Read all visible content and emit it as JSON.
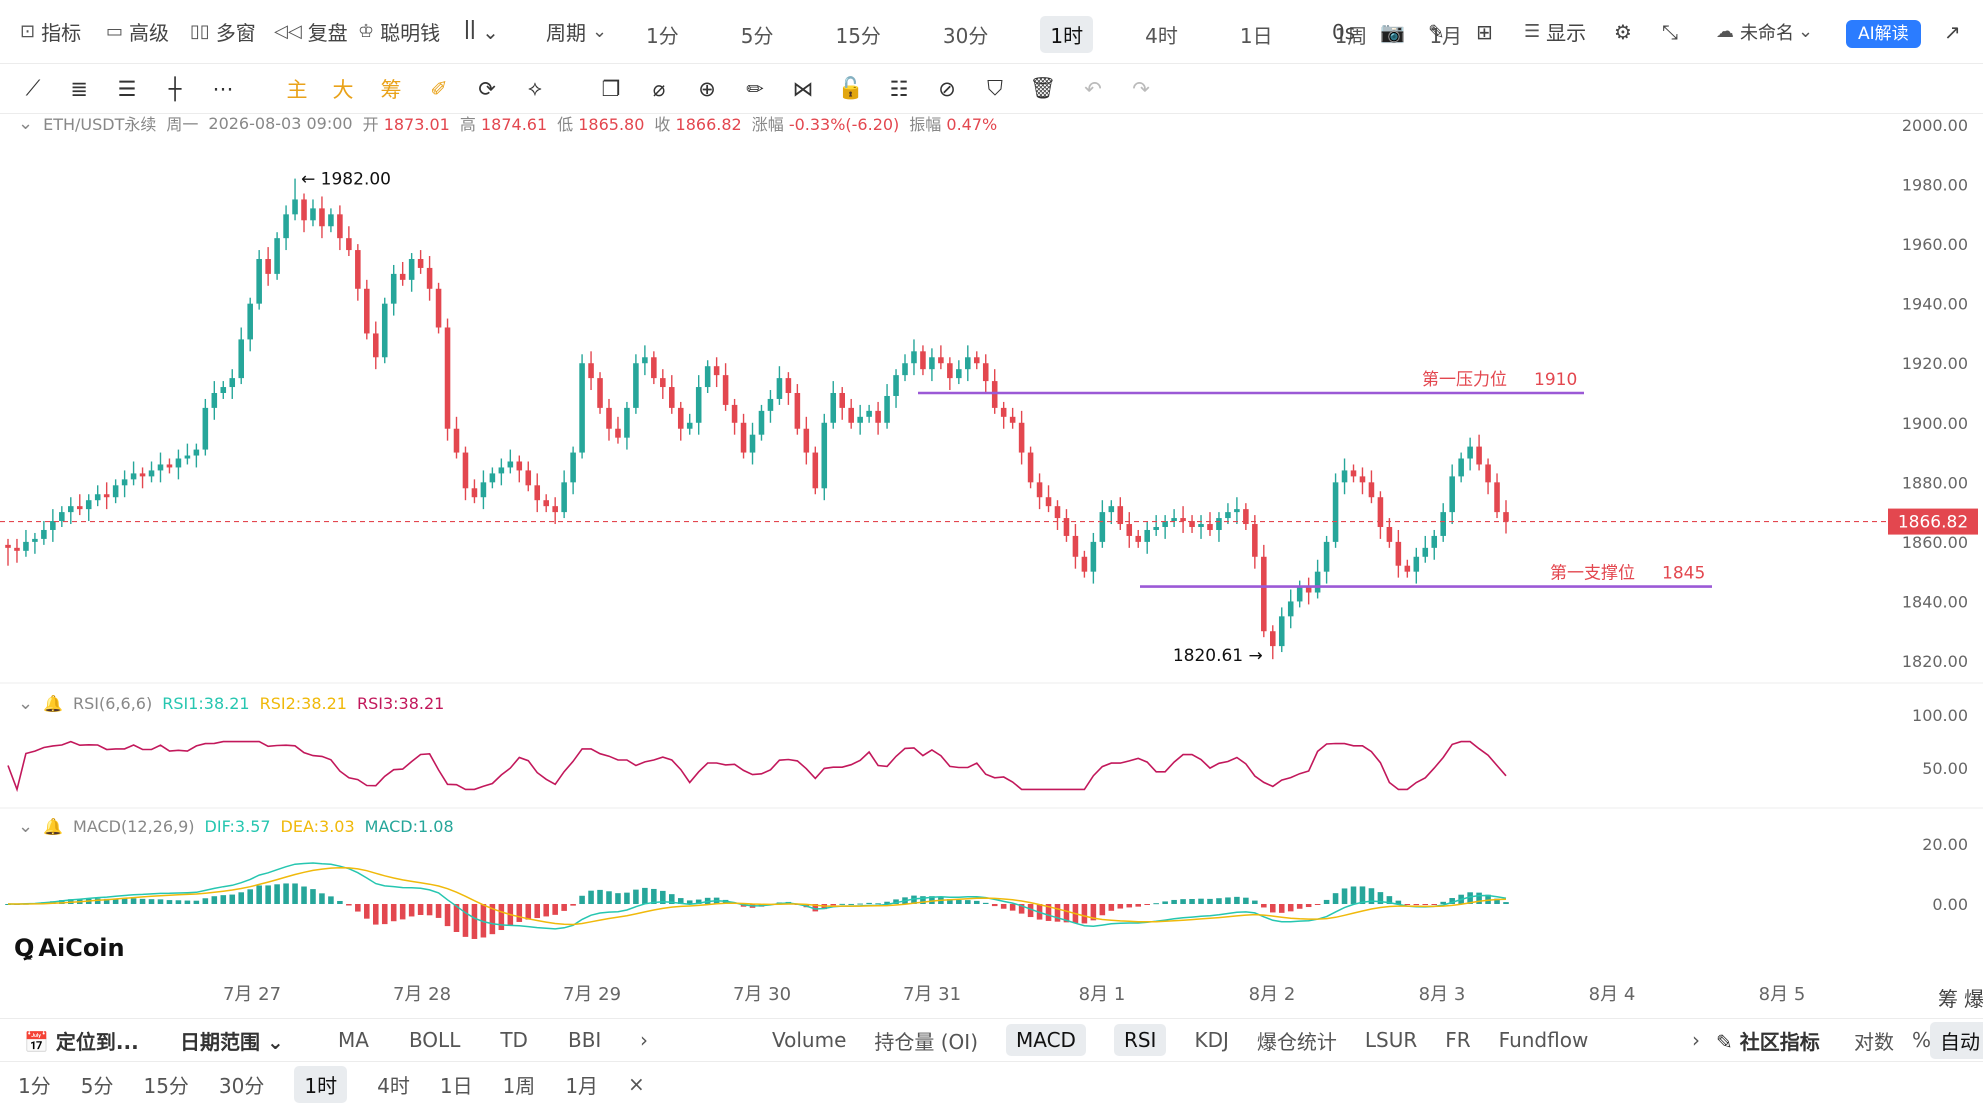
{
  "topbar": {
    "indicators": "指标",
    "advanced": "高级",
    "multi_window": "多窗",
    "replay": "复盘",
    "smart_money": "聪明钱",
    "period_label": "周期",
    "periods": [
      "1分",
      "5分",
      "15分",
      "30分",
      "1时",
      "4时",
      "1日",
      "1周",
      "1月"
    ],
    "active_period": "1时",
    "countdown": "0s",
    "display": "显示",
    "layout_name": "未命名",
    "ai_button": "AI解读"
  },
  "toolbar": {
    "main": "主",
    "big": "大",
    "chips": "筹"
  },
  "ohlc": {
    "symbol": "ETH/USDT永续",
    "weekday": "周一",
    "datetime": "2026-08-03 09:00",
    "open_label": "开",
    "open": "1873.01",
    "high_label": "高",
    "high": "1874.61",
    "low_label": "低",
    "low": "1865.80",
    "close_label": "收",
    "close": "1866.82",
    "change_label": "涨幅",
    "change": "-0.33%(-6.20)",
    "amplitude_label": "振幅",
    "amplitude": "0.47%"
  },
  "rsi_head": {
    "name": "RSI(6,6,6)",
    "rsi1": "RSI1:38.21",
    "rsi2": "RSI2:38.21",
    "rsi3": "RSI3:38.21"
  },
  "macd_head": {
    "name": "MACD(12,26,9)",
    "dif": "DIF:3.57",
    "dea": "DEA:3.03",
    "macd": "MACD:1.08"
  },
  "logo": "AiCoin",
  "bottom1": {
    "locate": "定位到...",
    "date_range": "日期范围",
    "overlays": [
      "MA",
      "BOLL",
      "TD",
      "BBI"
    ],
    "indicators": [
      "Volume",
      "持仓量 (OI)",
      "MACD",
      "RSI",
      "KDJ",
      "爆仓统计",
      "LSUR",
      "FR",
      "Fundflow"
    ],
    "active_indicators": [
      "MACD",
      "RSI"
    ],
    "community": "社区指标",
    "log": "对数",
    "percent": "%",
    "auto": "自动"
  },
  "bottom2": {
    "periods": [
      "1分",
      "5分",
      "15分",
      "30分",
      "1时",
      "4时",
      "1日",
      "1周",
      "1月"
    ],
    "active": "1时",
    "close": "×"
  },
  "colors": {
    "up": "#26a69a",
    "down": "#e3474f",
    "level_line": "#9b59d6",
    "level_text": "#e3474f",
    "rsi": "#c2185b",
    "dif": "#26c6b0",
    "dea": "#f0b90b"
  },
  "chart_data": {
    "type": "candlestick",
    "timeframe": "1h",
    "x_ticks": [
      "7月 27",
      "7月 28",
      "7月 29",
      "7月 30",
      "7月 31",
      "8月 1",
      "8月 2",
      "8月 3",
      "8月 4",
      "8月 5"
    ],
    "y_ticks": [
      2000,
      1980,
      1960,
      1940,
      1920,
      1900,
      1880,
      1860,
      1840,
      1820
    ],
    "ylim": [
      1815,
      2005
    ],
    "last_price": "1866.82",
    "max_label": "1982.00",
    "min_label": "1820.61",
    "price_path": [
      1858,
      1857,
      1860,
      1861,
      1864,
      1867,
      1870,
      1872,
      1871,
      1874,
      1876,
      1875,
      1879,
      1881,
      1883,
      1882,
      1884,
      1886,
      1885,
      1888,
      1889,
      1891,
      1905,
      1910,
      1912,
      1915,
      1928,
      1940,
      1955,
      1950,
      1962,
      1970,
      1975,
      1968,
      1972,
      1966,
      1970,
      1962,
      1958,
      1945,
      1930,
      1922,
      1940,
      1950,
      1948,
      1955,
      1952,
      1945,
      1932,
      1898,
      1890,
      1878,
      1875,
      1880,
      1883,
      1885,
      1887,
      1884,
      1879,
      1874,
      1872,
      1870,
      1880,
      1890,
      1920,
      1915,
      1905,
      1898,
      1895,
      1905,
      1920,
      1922,
      1915,
      1912,
      1905,
      1898,
      1900,
      1912,
      1919,
      1916,
      1906,
      1900,
      1890,
      1896,
      1904,
      1908,
      1915,
      1910,
      1898,
      1890,
      1878,
      1900,
      1910,
      1905,
      1900,
      1902,
      1904,
      1900,
      1909,
      1916,
      1920,
      1924,
      1918,
      1922,
      1920,
      1915,
      1918,
      1922,
      1920,
      1914,
      1905,
      1902,
      1900,
      1890,
      1880,
      1875,
      1872,
      1868,
      1862,
      1855,
      1850,
      1860,
      1870,
      1872,
      1866,
      1862,
      1860,
      1864,
      1865,
      1867,
      1868,
      1867,
      1865,
      1866,
      1864,
      1868,
      1870,
      1871,
      1866,
      1855,
      1830,
      1825,
      1835,
      1840,
      1845,
      1843,
      1850,
      1860,
      1880,
      1884,
      1882,
      1880,
      1875,
      1865,
      1860,
      1852,
      1850,
      1855,
      1858,
      1862,
      1870,
      1882,
      1888,
      1892,
      1886,
      1880,
      1870,
      1866.82
    ],
    "levels": [
      {
        "label": "第一压力位",
        "value": "1910"
      },
      {
        "label": "第一支撑位",
        "value": "1845"
      }
    ],
    "rsi": {
      "y_ticks": [
        "100.00",
        "50.00"
      ]
    },
    "macd": {
      "y_ticks": [
        "20.00",
        "0.00"
      ]
    },
    "side_labels": [
      "筹",
      "爆"
    ]
  }
}
